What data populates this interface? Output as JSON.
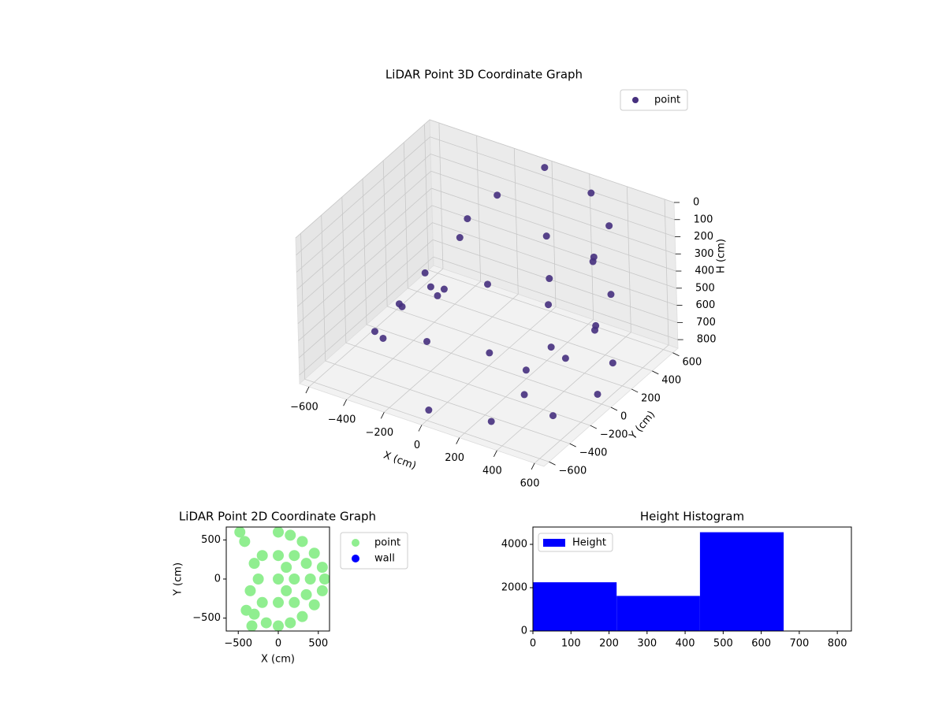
{
  "chart_data": [
    {
      "type": "scatter3d",
      "title": "LiDAR Point 3D Coordinate Graph",
      "xlabel": "X (cm)",
      "ylabel": "Y (cm)",
      "zlabel": "H (cm)",
      "xlim": [
        -650,
        650
      ],
      "ylim": [
        -650,
        650
      ],
      "zlim": [
        0,
        850
      ],
      "z_inverted": true,
      "xticks": [
        {
          "value": -600,
          "label": "−600"
        },
        {
          "value": -400,
          "label": "−400"
        },
        {
          "value": -200,
          "label": "−200"
        },
        0,
        200,
        400,
        600
      ],
      "yticks": [
        {
          "value": -600,
          "label": "−600"
        },
        {
          "value": -400,
          "label": "−400"
        },
        {
          "value": -200,
          "label": "−200"
        },
        0,
        200,
        400,
        600
      ],
      "zticks": [
        0,
        100,
        200,
        300,
        400,
        500,
        600,
        700,
        800
      ],
      "grid": true,
      "legend": "upper right",
      "series": [
        {
          "name": "point",
          "color": "#46307e",
          "x": [
            0,
            290,
            502,
            580,
            502,
            290,
            0,
            0,
            290,
            502,
            580,
            502,
            290,
            0,
            0,
            290,
            502,
            580,
            502,
            290,
            0,
            200,
            300,
            300,
            -400,
            -500,
            -450,
            -300,
            -350,
            -200,
            -550,
            -250,
            -150,
            -100
          ],
          "y": [
            -580,
            -502,
            -290,
            0,
            290,
            502,
            580,
            -580,
            -502,
            -290,
            0,
            290,
            502,
            580,
            -580,
            -502,
            -290,
            0,
            290,
            502,
            580,
            0,
            200,
            -200,
            -100,
            50,
            -200,
            0,
            150,
            -50,
            -100,
            200,
            100,
            300
          ],
          "h": [
            0,
            0,
            0,
            0,
            0,
            0,
            0,
            400,
            400,
            400,
            400,
            400,
            400,
            400,
            800,
            800,
            800,
            800,
            800,
            800,
            800,
            800,
            800,
            800,
            600,
            700,
            750,
            500,
            650,
            450,
            800,
            300,
            100,
            50
          ]
        }
      ]
    },
    {
      "type": "scatter",
      "title": "LiDAR Point 2D Coordinate Graph",
      "xlabel": "X (cm)",
      "ylabel": "Y (cm)",
      "xlim": [
        -650,
        640
      ],
      "ylim": [
        -665,
        665
      ],
      "xticks": [
        {
          "value": -500,
          "label": "−500"
        },
        0,
        500
      ],
      "yticks": [
        {
          "value": -500,
          "label": "−500"
        },
        0,
        500
      ],
      "legend": "outside upper right",
      "series": [
        {
          "name": "point",
          "color": "#90ee90",
          "x": [
            0,
            150,
            300,
            450,
            550,
            580,
            550,
            450,
            300,
            150,
            0,
            -150,
            -200,
            -250,
            -200,
            0,
            200,
            400,
            0,
            200,
            0,
            200,
            -300,
            -350,
            -400,
            -480,
            -420,
            -330,
            -300,
            100,
            100,
            350,
            350
          ],
          "y": [
            600,
            560,
            480,
            330,
            150,
            0,
            -150,
            -330,
            -480,
            -560,
            -600,
            -560,
            300,
            0,
            -300,
            0,
            0,
            0,
            300,
            300,
            -300,
            -300,
            200,
            -150,
            -400,
            600,
            480,
            -600,
            -450,
            150,
            -150,
            200,
            -200
          ]
        },
        {
          "name": "wall",
          "color": "#0000ff",
          "x": [],
          "y": []
        }
      ]
    },
    {
      "type": "histogram",
      "title": "Height Histogram",
      "bins": [
        0,
        220,
        439,
        659
      ],
      "xlim": [
        0,
        837
      ],
      "ylim": [
        0,
        4800
      ],
      "xticks": [
        0,
        100,
        200,
        300,
        400,
        500,
        600,
        700,
        800
      ],
      "yticks": [
        0,
        2000,
        4000
      ],
      "legend": "upper left",
      "series": [
        {
          "name": "Height",
          "color": "#0000ff",
          "values": [
            2250,
            1620,
            4560
          ]
        }
      ]
    }
  ]
}
